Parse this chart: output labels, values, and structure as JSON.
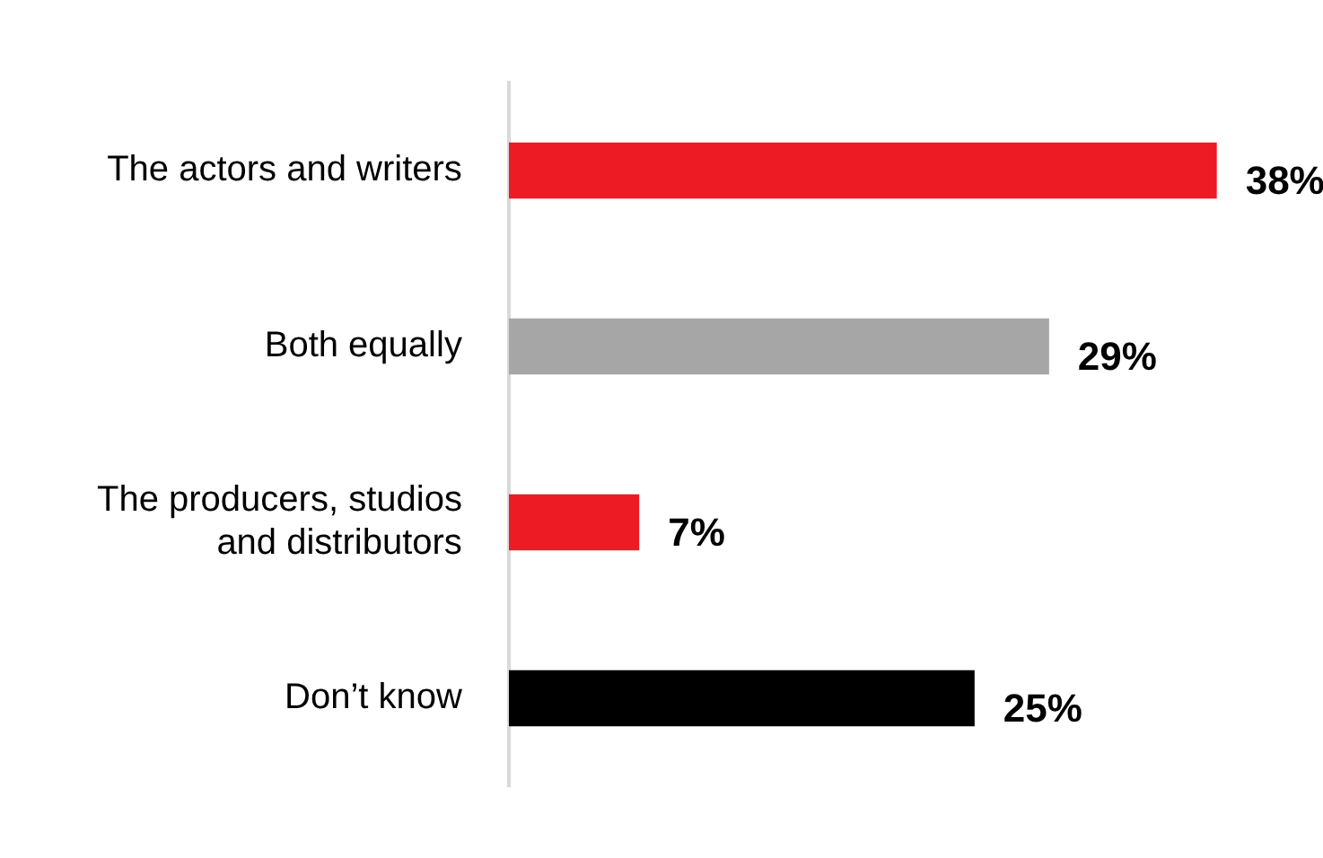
{
  "chart_data": {
    "type": "bar",
    "orientation": "horizontal",
    "categories": [
      "The actors and writers",
      "Both equally",
      "The producers, studios and distributors",
      "Don’t know"
    ],
    "values": [
      38,
      29,
      7,
      25
    ],
    "colors": [
      "#ed1c24",
      "#a6a6a6",
      "#ed1c24",
      "#000000"
    ],
    "value_labels": [
      "38%",
      "29%",
      "7%",
      "25%"
    ],
    "grid": false,
    "legend": false,
    "tick_labels": "y"
  }
}
